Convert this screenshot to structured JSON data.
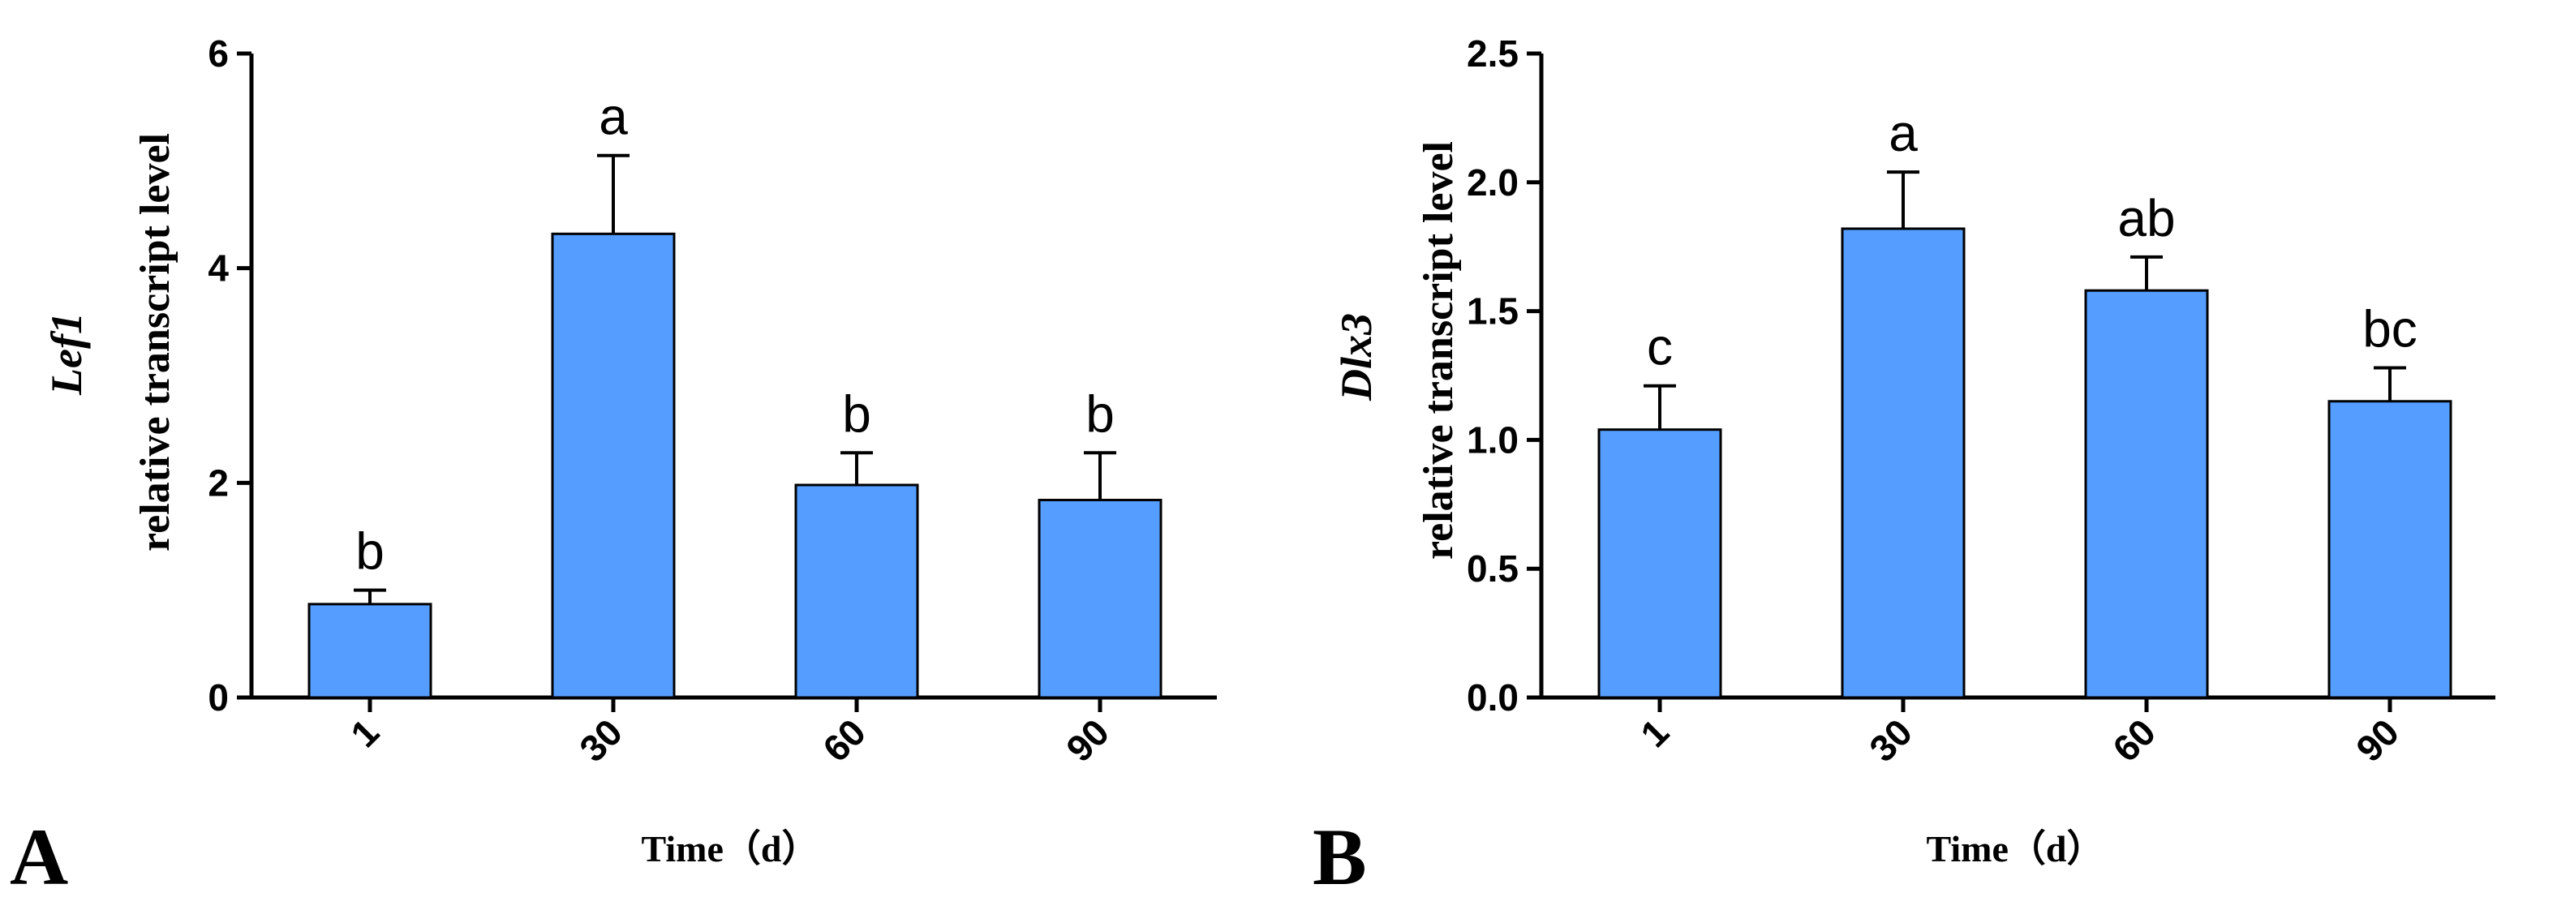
{
  "chart_data": [
    {
      "type": "bar",
      "panel_label": "A",
      "categories": [
        "1",
        "30",
        "60",
        "90"
      ],
      "values": [
        0.87,
        4.32,
        1.98,
        1.84
      ],
      "errors": [
        0.13,
        0.73,
        0.3,
        0.44
      ],
      "significance": [
        "b",
        "a",
        "b",
        "b"
      ],
      "ylabel_gene": "Lef1",
      "ylabel": "relative transcript level",
      "xlabel": "Time（d）",
      "ylim": [
        0,
        6
      ],
      "yticks": [
        "0",
        "2",
        "4",
        "6"
      ],
      "grid": false,
      "bar_color": "#559EFF"
    },
    {
      "type": "bar",
      "panel_label": "B",
      "categories": [
        "1",
        "30",
        "60",
        "90"
      ],
      "values": [
        1.04,
        1.82,
        1.58,
        1.15
      ],
      "errors": [
        0.17,
        0.22,
        0.13,
        0.13
      ],
      "significance": [
        "c",
        "a",
        "ab",
        "bc"
      ],
      "ylabel_gene": "Dlx3",
      "ylabel": "relative transcript level",
      "xlabel": "Time（d）",
      "ylim": [
        0,
        2.5
      ],
      "yticks": [
        "0.0",
        "0.5",
        "1.0",
        "1.5",
        "2.0",
        "2.5"
      ],
      "grid": false,
      "bar_color": "#559EFF"
    }
  ]
}
